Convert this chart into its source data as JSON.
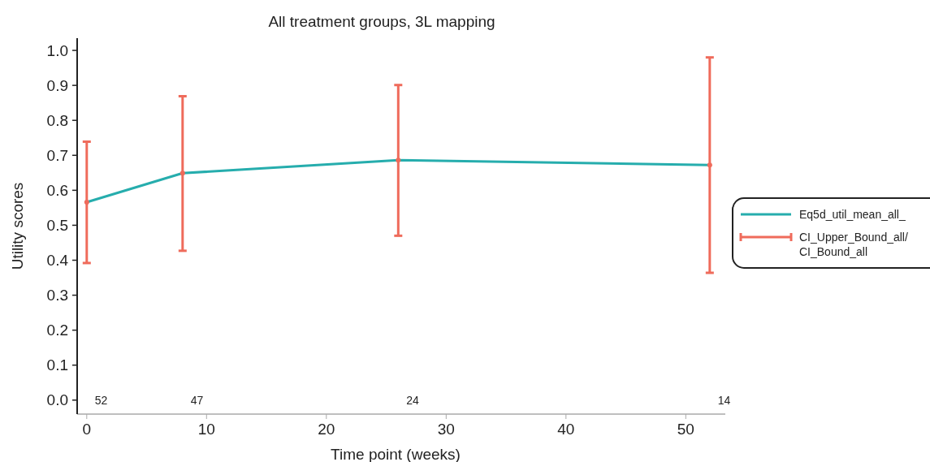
{
  "chart_data": {
    "type": "line",
    "title": "All treatment groups, 3L mapping",
    "xlabel": "Time point (weeks)",
    "ylabel": "Utility scores",
    "x": [
      0,
      8,
      26,
      52
    ],
    "series": [
      {
        "name": "Eq5d_util_mean_all_",
        "color": "#26adad",
        "values": [
          0.566,
          0.649,
          0.686,
          0.672
        ]
      },
      {
        "name": "CI_Upper_Bound_all/\nCI_Bound_all",
        "color": "#ef6b5b",
        "type": "scatter",
        "values": [
          0.566,
          0.649,
          0.686,
          0.672
        ],
        "errors": [
          [
            0.392,
            0.739
          ],
          [
            0.427,
            0.869
          ],
          [
            0.47,
            0.901
          ],
          [
            0.364,
            0.98
          ]
        ]
      }
    ],
    "xlim": [
      -0.8,
      53.3
    ],
    "xticks": [
      0,
      10,
      20,
      30,
      40,
      50
    ],
    "ylim": [
      -0.04,
      1.035
    ],
    "yticks": [
      {
        "value": 0,
        "label": "0.0"
      },
      0.1,
      0.2,
      0.3,
      0.4,
      0.5,
      0.6,
      0.7,
      0.8,
      0.9,
      {
        "value": 1,
        "label": "1.0"
      }
    ],
    "annotations": [
      "52",
      "47",
      "24",
      "14"
    ],
    "legend": "right",
    "grid": false
  }
}
